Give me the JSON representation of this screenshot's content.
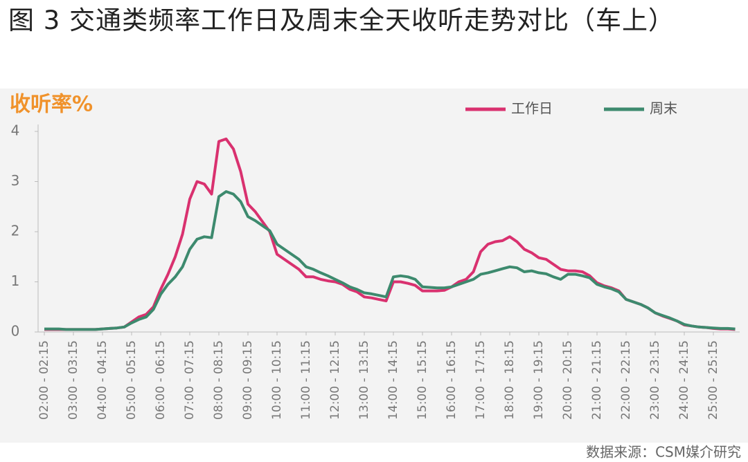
{
  "chart_data": {
    "type": "line",
    "title": "图 3 交通类频率工作日及周末全天收听走势对比（车上）",
    "ylabel": "收听率%",
    "source": "数据来源：CSM媒介研究",
    "categories": [
      "02:00 - 02:15",
      null,
      null,
      null,
      "03:00 - 03:15",
      null,
      null,
      null,
      "04:00 - 04:15",
      null,
      null,
      null,
      "05:00 - 05:15",
      null,
      null,
      null,
      "06:00 - 06:15",
      null,
      null,
      null,
      "07:00 - 07:15",
      null,
      null,
      null,
      "08:00 - 08:15",
      null,
      null,
      null,
      "09:00 - 09:15",
      null,
      null,
      null,
      "10:00 - 10:15",
      null,
      null,
      null,
      "11:00 - 11:15",
      null,
      null,
      null,
      "12:00 - 12:15",
      null,
      null,
      null,
      "13:00 - 13:15",
      null,
      null,
      null,
      "14:00 - 14:15",
      null,
      null,
      null,
      "15:00 - 15:15",
      null,
      null,
      null,
      "16:00 - 16:15",
      null,
      null,
      null,
      "17:00 - 17:15",
      null,
      null,
      null,
      "18:00 - 18:15",
      null,
      null,
      null,
      "19:00 - 19:15",
      null,
      null,
      null,
      "20:00 - 20:15",
      null,
      null,
      null,
      "21:00 - 21:15",
      null,
      null,
      null,
      "22:00 - 22:15",
      null,
      null,
      null,
      "23:00 - 23:15",
      null,
      null,
      null,
      "24:00 - 24:15",
      null,
      null,
      null,
      "25:00 - 25:15",
      null,
      null,
      null
    ],
    "series": [
      {
        "name": "工作日",
        "color": "#d9316f",
        "values": [
          0.05,
          0.05,
          0.05,
          0.05,
          0.05,
          0.05,
          0.05,
          0.05,
          0.06,
          0.07,
          0.08,
          0.1,
          0.2,
          0.3,
          0.35,
          0.5,
          0.85,
          1.15,
          1.5,
          1.95,
          2.65,
          3.0,
          2.95,
          2.75,
          3.8,
          3.85,
          3.65,
          3.2,
          2.55,
          2.4,
          2.2,
          2.0,
          1.55,
          1.45,
          1.35,
          1.25,
          1.1,
          1.1,
          1.05,
          1.02,
          1.0,
          0.95,
          0.85,
          0.8,
          0.7,
          0.68,
          0.65,
          0.62,
          1.0,
          1.0,
          0.97,
          0.93,
          0.82,
          0.82,
          0.82,
          0.83,
          0.9,
          1.0,
          1.05,
          1.2,
          1.6,
          1.75,
          1.8,
          1.82,
          1.9,
          1.8,
          1.65,
          1.58,
          1.48,
          1.45,
          1.35,
          1.25,
          1.22,
          1.22,
          1.2,
          1.12,
          0.98,
          0.92,
          0.88,
          0.82,
          0.65,
          0.6,
          0.55,
          0.48,
          0.38,
          0.32,
          0.27,
          0.22,
          0.14,
          0.12,
          0.1,
          0.09,
          0.07,
          0.06,
          0.06,
          0.05
        ]
      },
      {
        "name": "周末",
        "color": "#3d8a6e",
        "values": [
          0.06,
          0.06,
          0.06,
          0.05,
          0.05,
          0.05,
          0.05,
          0.05,
          0.06,
          0.07,
          0.08,
          0.1,
          0.18,
          0.25,
          0.3,
          0.45,
          0.75,
          0.95,
          1.1,
          1.3,
          1.65,
          1.85,
          1.9,
          1.88,
          2.7,
          2.8,
          2.75,
          2.6,
          2.3,
          2.22,
          2.12,
          2.02,
          1.75,
          1.65,
          1.55,
          1.45,
          1.3,
          1.25,
          1.18,
          1.12,
          1.05,
          0.98,
          0.9,
          0.85,
          0.78,
          0.76,
          0.73,
          0.7,
          1.1,
          1.12,
          1.1,
          1.05,
          0.9,
          0.89,
          0.88,
          0.88,
          0.9,
          0.95,
          1.0,
          1.05,
          1.15,
          1.18,
          1.22,
          1.26,
          1.3,
          1.28,
          1.2,
          1.22,
          1.18,
          1.16,
          1.1,
          1.05,
          1.15,
          1.15,
          1.12,
          1.08,
          0.95,
          0.9,
          0.86,
          0.8,
          0.65,
          0.6,
          0.55,
          0.48,
          0.38,
          0.33,
          0.28,
          0.22,
          0.15,
          0.12,
          0.1,
          0.09,
          0.08,
          0.07,
          0.07,
          0.06
        ]
      }
    ],
    "ylim": [
      0,
      4
    ],
    "yticks": [
      0,
      1,
      2,
      3,
      4
    ]
  }
}
